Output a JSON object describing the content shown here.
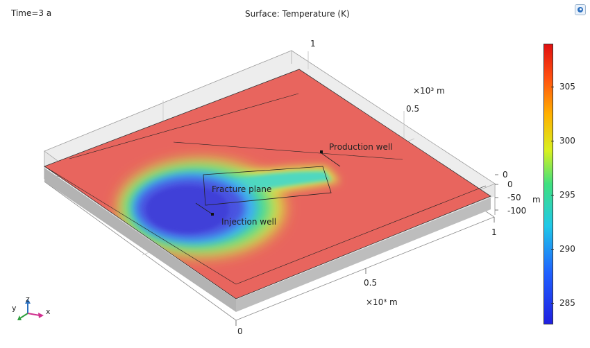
{
  "header": {
    "time_label": "Time=3 a",
    "plot_title": "Surface: Temperature (K)"
  },
  "annotations": {
    "production_well": "Production well",
    "fracture_plane": "Fracture plane",
    "injection_well": "Injection well"
  },
  "axes": {
    "x_unit": "×10³ m",
    "y_unit": "×10³ m",
    "z_unit": "m",
    "x_ticks": [
      "0",
      "0.5",
      "1"
    ],
    "y_ticks": [
      "0.5",
      "1"
    ],
    "z_ticks": [
      "0",
      "0",
      "-50",
      "-100"
    ],
    "triad": {
      "x": "x",
      "y": "y",
      "z": "z"
    }
  },
  "colorbar": {
    "ticks": [
      "305",
      "300",
      "295",
      "290",
      "285"
    ],
    "min": 283,
    "max": 309
  },
  "colors": {
    "hot": "#e8564f",
    "cold": "#3a3ad8",
    "slab": "#b9b9b9"
  },
  "toolbar": {
    "icon": "comsol-app-icon"
  }
}
